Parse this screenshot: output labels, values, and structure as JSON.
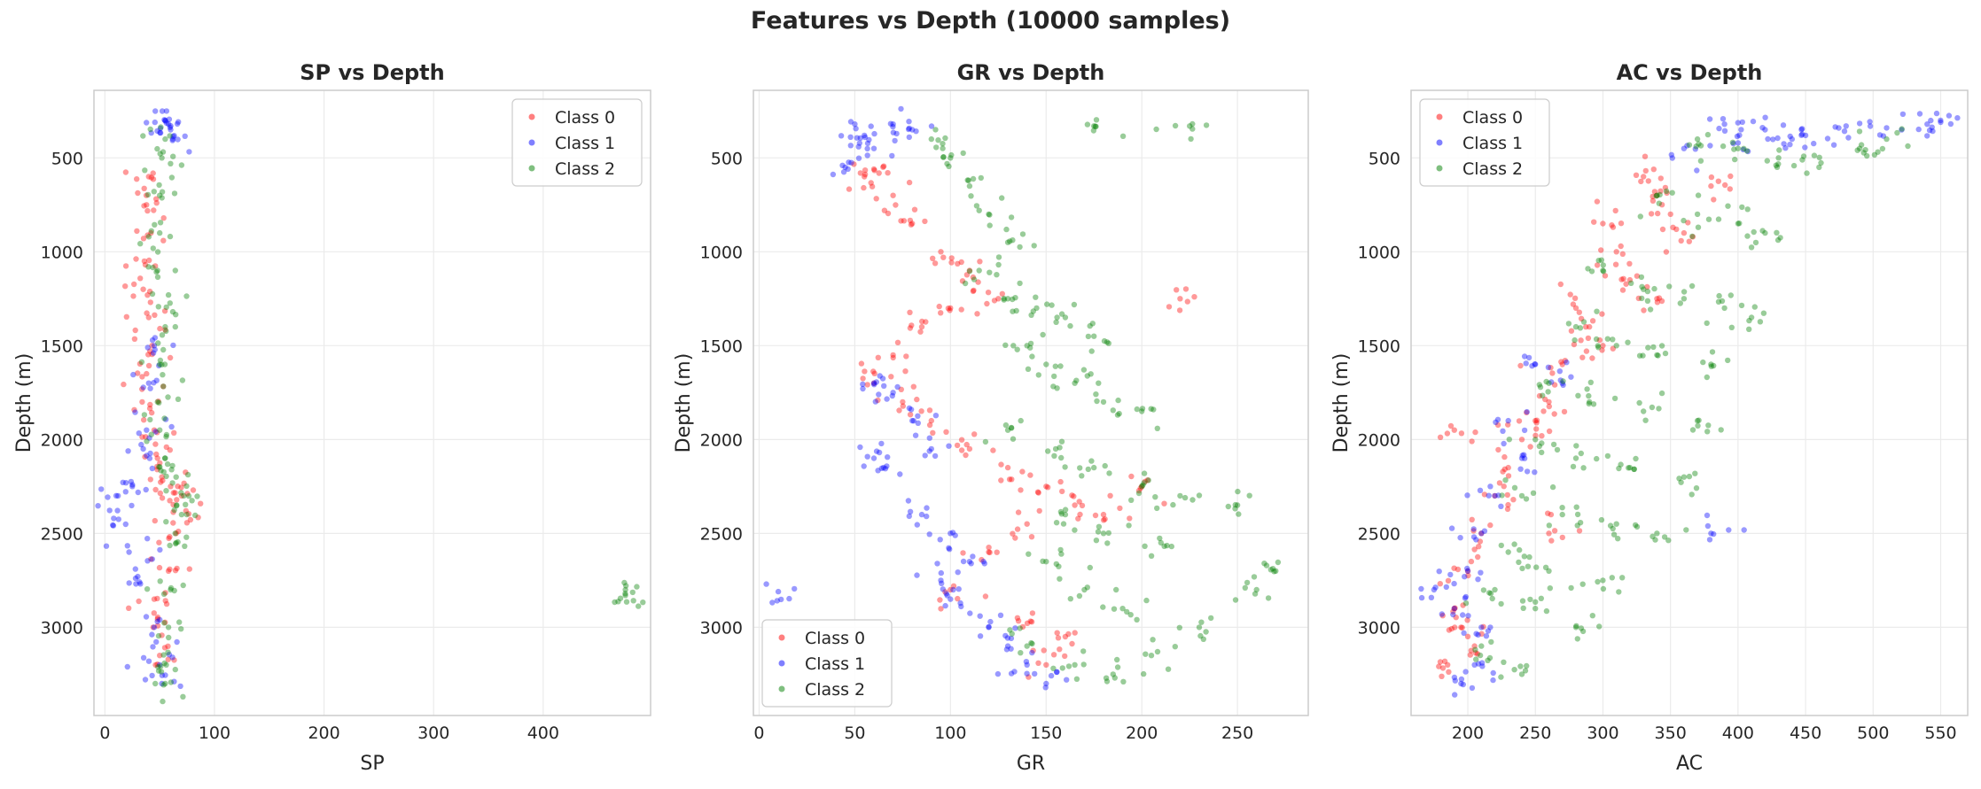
{
  "figure": {
    "suptitle": "Features vs Depth (10000 samples)"
  },
  "legend_labels": [
    "Class 0",
    "Class 1",
    "Class 2"
  ],
  "colors": {
    "class0": "#ff0000",
    "class1": "#0000ff",
    "class2": "#008000",
    "axes_edge": "#cccccc",
    "grid": "#ebebeb",
    "text": "#262626"
  },
  "chart_data": [
    {
      "type": "scatter",
      "title": "SP vs Depth",
      "xlabel": "SP",
      "ylabel": "Depth (m)",
      "xlim": [
        -10,
        498
      ],
      "ylim": [
        3470,
        140
      ],
      "y_inverted": true,
      "xticks": [
        0,
        100,
        200,
        300,
        400
      ],
      "yticks": [
        500,
        1000,
        1500,
        2000,
        2500,
        3000
      ],
      "grid": true,
      "legend_position": "upper right",
      "series": [
        {
          "name": "Class 0",
          "x": [
            40,
            38,
            42,
            36,
            35,
            40,
            43,
            38,
            34,
            45,
            48,
            52,
            60,
            70,
            74,
            65,
            58,
            45,
            44,
            50
          ],
          "y": [
            600,
            750,
            900,
            1050,
            1200,
            1350,
            1500,
            1650,
            1800,
            1950,
            2100,
            2200,
            2250,
            2300,
            2380,
            2500,
            2700,
            2850,
            3000,
            3150
          ]
        },
        {
          "name": "Class 1",
          "x": [
            55,
            58,
            60,
            62,
            45,
            40,
            38,
            35,
            25,
            12,
            8,
            22,
            30,
            45,
            50,
            52
          ],
          "y": [
            300,
            320,
            350,
            400,
            1500,
            1700,
            1950,
            2050,
            2250,
            2300,
            2420,
            2600,
            2730,
            3000,
            3200,
            3300
          ]
        },
        {
          "name": "Class 2",
          "x": [
            55,
            52,
            50,
            50,
            48,
            58,
            55,
            50,
            48,
            50,
            55,
            65,
            72,
            70,
            65,
            60,
            58,
            56,
            55,
            475,
            475
          ],
          "y": [
            400,
            500,
            700,
            900,
            1100,
            1230,
            1400,
            1600,
            1800,
            1950,
            2100,
            2200,
            2300,
            2400,
            2550,
            2800,
            3000,
            3200,
            3300,
            2800,
            2830
          ]
        }
      ]
    },
    {
      "type": "scatter",
      "title": "GR vs Depth",
      "xlabel": "GR",
      "ylabel": "Depth (m)",
      "xlim": [
        -3,
        287
      ],
      "ylim": [
        3470,
        140
      ],
      "y_inverted": true,
      "xticks": [
        0,
        50,
        100,
        150,
        200,
        250
      ],
      "yticks": [
        500,
        1000,
        1500,
        2000,
        2500,
        3000
      ],
      "grid": true,
      "legend_position": "lower left",
      "series": [
        {
          "name": "Class 0",
          "x": [
            55,
            60,
            70,
            80,
            95,
            110,
            125,
            100,
            85,
            70,
            60,
            75,
            90,
            110,
            130,
            150,
            165,
            140,
            120,
            100,
            135,
            160,
            150,
            180,
            200,
            220
          ],
          "y": [
            600,
            560,
            700,
            850,
            1000,
            1100,
            1250,
            1300,
            1400,
            1550,
            1700,
            1800,
            1900,
            2050,
            2150,
            2250,
            2350,
            2450,
            2600,
            2800,
            2950,
            3050,
            3200,
            2400,
            2250,
            1250
          ]
        },
        {
          "name": "Class 1",
          "x": [
            50,
            55,
            60,
            70,
            80,
            45,
            60,
            70,
            80,
            90,
            60,
            65,
            85,
            100,
            110,
            95,
            100,
            120,
            130,
            140,
            150,
            10
          ],
          "y": [
            320,
            380,
            450,
            320,
            350,
            550,
            1700,
            1750,
            1900,
            2050,
            2100,
            2150,
            2400,
            2500,
            2650,
            2750,
            2850,
            3000,
            3100,
            3200,
            3300,
            2810
          ]
        },
        {
          "name": "Class 2",
          "x": [
            90,
            100,
            110,
            120,
            130,
            115,
            130,
            145,
            160,
            175,
            140,
            150,
            165,
            180,
            200,
            130,
            155,
            175,
            200,
            220,
            160,
            180,
            210,
            250,
            270,
            150,
            170,
            190,
            230,
            260,
            140,
            165,
            185,
            205,
            175,
            225
          ],
          "y": [
            400,
            500,
            650,
            800,
            950,
            1100,
            1250,
            1300,
            1350,
            1450,
            1500,
            1600,
            1700,
            1800,
            1850,
            1950,
            2050,
            2150,
            2250,
            2300,
            2400,
            2500,
            2550,
            2350,
            2700,
            2650,
            2800,
            2900,
            3000,
            2800,
            3100,
            3200,
            3250,
            3150,
            330,
            330
          ]
        }
      ]
    },
    {
      "type": "scatter",
      "title": "AC vs Depth",
      "xlabel": "AC",
      "ylabel": "Depth (m)",
      "xlim": [
        158,
        570
      ],
      "ylim": [
        3470,
        140
      ],
      "y_inverted": true,
      "xticks": [
        200,
        250,
        300,
        350,
        400,
        450,
        500,
        550
      ],
      "yticks": [
        500,
        1000,
        1500,
        2000,
        2500,
        3000
      ],
      "grid": true,
      "legend_position": "upper left",
      "series": [
        {
          "name": "Class 0",
          "x": [
            330,
            340,
            350,
            360,
            380,
            300,
            310,
            320,
            340,
            280,
            290,
            300,
            270,
            260,
            250,
            240,
            230,
            220,
            210,
            200,
            190,
            195,
            205,
            185,
            190,
            260
          ],
          "y": [
            600,
            700,
            800,
            900,
            650,
            850,
            1000,
            1150,
            1250,
            1300,
            1400,
            1500,
            1600,
            1800,
            1900,
            2000,
            2150,
            2300,
            2500,
            2700,
            2900,
            3000,
            3100,
            3200,
            1950,
            2500
          ]
        },
        {
          "name": "Class 1",
          "x": [
            390,
            420,
            450,
            480,
            510,
            540,
            550,
            360,
            400,
            440,
            250,
            270,
            230,
            240,
            220,
            210,
            200,
            190,
            210,
            205,
            195,
            380,
            175
          ],
          "y": [
            320,
            350,
            380,
            330,
            340,
            320,
            310,
            450,
            420,
            400,
            1600,
            1700,
            1900,
            2100,
            2300,
            2500,
            2700,
            2900,
            3000,
            3200,
            3300,
            2500,
            2800
          ]
        },
        {
          "name": "Class 2",
          "x": [
            370,
            400,
            430,
            460,
            490,
            510,
            340,
            370,
            400,
            420,
            300,
            330,
            360,
            390,
            410,
            280,
            310,
            340,
            380,
            260,
            290,
            330,
            370,
            250,
            280,
            320,
            360,
            240,
            270,
            310,
            340,
            230,
            260,
            300,
            220,
            250,
            280,
            210,
            240
          ],
          "y": [
            400,
            450,
            500,
            550,
            450,
            400,
            700,
            800,
            850,
            900,
            1100,
            1200,
            1250,
            1300,
            1350,
            1400,
            1500,
            1550,
            1600,
            1700,
            1800,
            1850,
            1900,
            2000,
            2100,
            2150,
            2200,
            2300,
            2400,
            2450,
            2500,
            2600,
            2700,
            2750,
            2800,
            2900,
            3000,
            3100,
            3250
          ]
        }
      ]
    }
  ]
}
